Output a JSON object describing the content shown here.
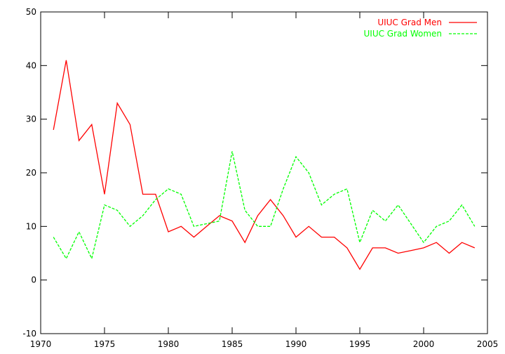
{
  "chart_data": {
    "type": "line",
    "title": "",
    "xlabel": "",
    "ylabel": "",
    "xlim": [
      1970,
      2005
    ],
    "ylim": [
      -10,
      50
    ],
    "xticks": [
      1970,
      1975,
      1980,
      1985,
      1990,
      1995,
      2000,
      2005
    ],
    "yticks": [
      -10,
      0,
      10,
      20,
      30,
      40,
      50
    ],
    "grid": false,
    "legend": "top-right",
    "x": [
      1971,
      1972,
      1973,
      1974,
      1975,
      1976,
      1977,
      1978,
      1979,
      1980,
      1981,
      1982,
      1983,
      1984,
      1985,
      1986,
      1987,
      1988,
      1989,
      1990,
      1991,
      1992,
      1993,
      1994,
      1995,
      1996,
      1997,
      1998,
      1999,
      2000,
      2001,
      2002,
      2003,
      2004
    ],
    "series": [
      {
        "name": "UIUC Grad Men",
        "color": "#ff0000",
        "dash": "solid",
        "values": [
          28,
          41,
          26,
          29,
          16,
          33,
          29,
          16,
          16,
          9,
          10,
          8,
          10,
          12,
          11,
          7,
          12,
          15,
          12,
          8,
          10,
          8,
          8,
          6,
          2,
          6,
          6,
          5,
          5.5,
          6,
          7,
          5,
          7,
          6
        ]
      },
      {
        "name": "UIUC Grad Women",
        "color": "#00ff00",
        "dash": "dashed",
        "values": [
          8,
          4,
          9,
          4,
          14,
          13,
          10,
          12,
          15,
          17,
          16,
          10,
          10.5,
          11,
          24,
          13,
          10,
          10,
          17,
          23,
          20,
          14,
          16,
          17,
          7,
          13,
          11,
          14,
          10.5,
          7,
          10,
          11,
          14,
          10
        ]
      }
    ]
  }
}
